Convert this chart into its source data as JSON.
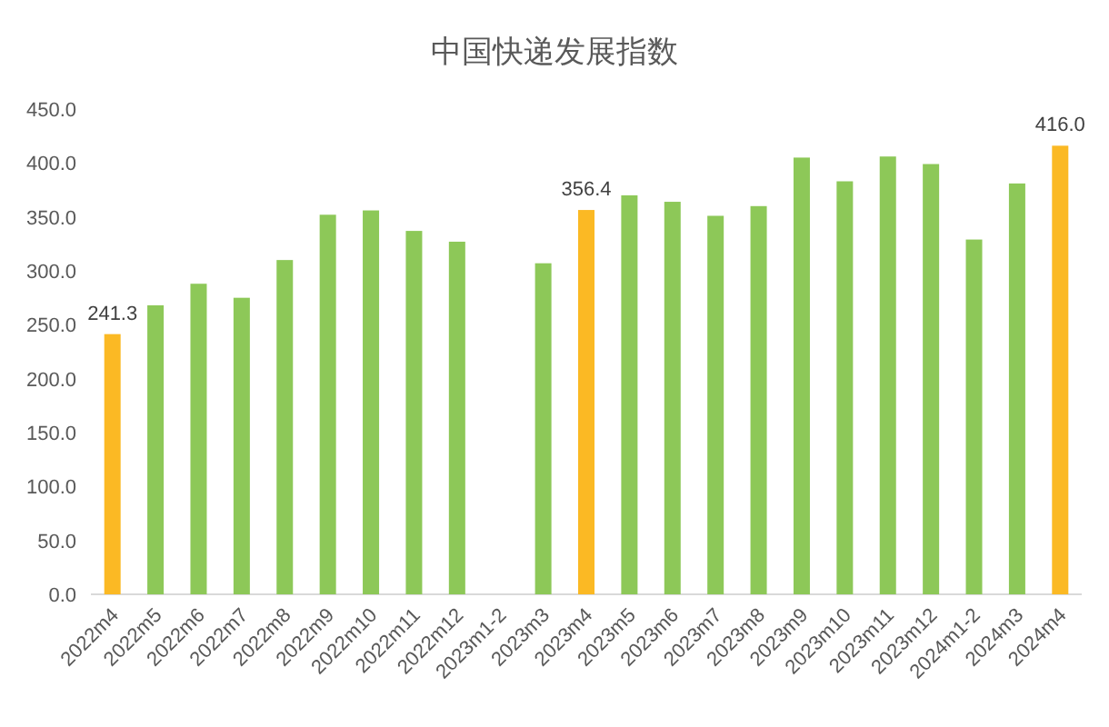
{
  "chart_data": {
    "type": "bar",
    "title": "中国快递发展指数",
    "categories": [
      "2022m4",
      "2022m5",
      "2022m6",
      "2022m7",
      "2022m8",
      "2022m9",
      "2022m10",
      "2022m11",
      "2022m12",
      "2023m1-2",
      "2023m3",
      "2023m4",
      "2023m5",
      "2023m6",
      "2023m7",
      "2023m8",
      "2023m9",
      "2023m10",
      "2023m11",
      "2023m12",
      "2024m1-2",
      "2024m3",
      "2024m4"
    ],
    "values": [
      241.3,
      268,
      288,
      275,
      310,
      352,
      356,
      337,
      327,
      null,
      307,
      356.4,
      370,
      364,
      351,
      360,
      405,
      383,
      406,
      399,
      329,
      381,
      416.0
    ],
    "colors": [
      "#fbb924",
      "#8dc858",
      "#8dc858",
      "#8dc858",
      "#8dc858",
      "#8dc858",
      "#8dc858",
      "#8dc858",
      "#8dc858",
      null,
      "#8dc858",
      "#fbb924",
      "#8dc858",
      "#8dc858",
      "#8dc858",
      "#8dc858",
      "#8dc858",
      "#8dc858",
      "#8dc858",
      "#8dc858",
      "#8dc858",
      "#8dc858",
      "#fbb924"
    ],
    "value_labels": [
      "241.3",
      null,
      null,
      null,
      null,
      null,
      null,
      null,
      null,
      null,
      null,
      "356.4",
      null,
      null,
      null,
      null,
      null,
      null,
      null,
      null,
      null,
      null,
      "416.0"
    ],
    "ylim": [
      0,
      450
    ],
    "yticks": [
      {
        "value": 0,
        "label": "0.0"
      },
      {
        "value": 50,
        "label": "50.0"
      },
      {
        "value": 100,
        "label": "100.0"
      },
      {
        "value": 150,
        "label": "150.0"
      },
      {
        "value": 200,
        "label": "200.0"
      },
      {
        "value": 250,
        "label": "250.0"
      },
      {
        "value": 300,
        "label": "300.0"
      },
      {
        "value": 350,
        "label": "350.0"
      },
      {
        "value": 400,
        "label": "400.0"
      },
      {
        "value": 450,
        "label": "450.0"
      }
    ],
    "grid": false
  }
}
